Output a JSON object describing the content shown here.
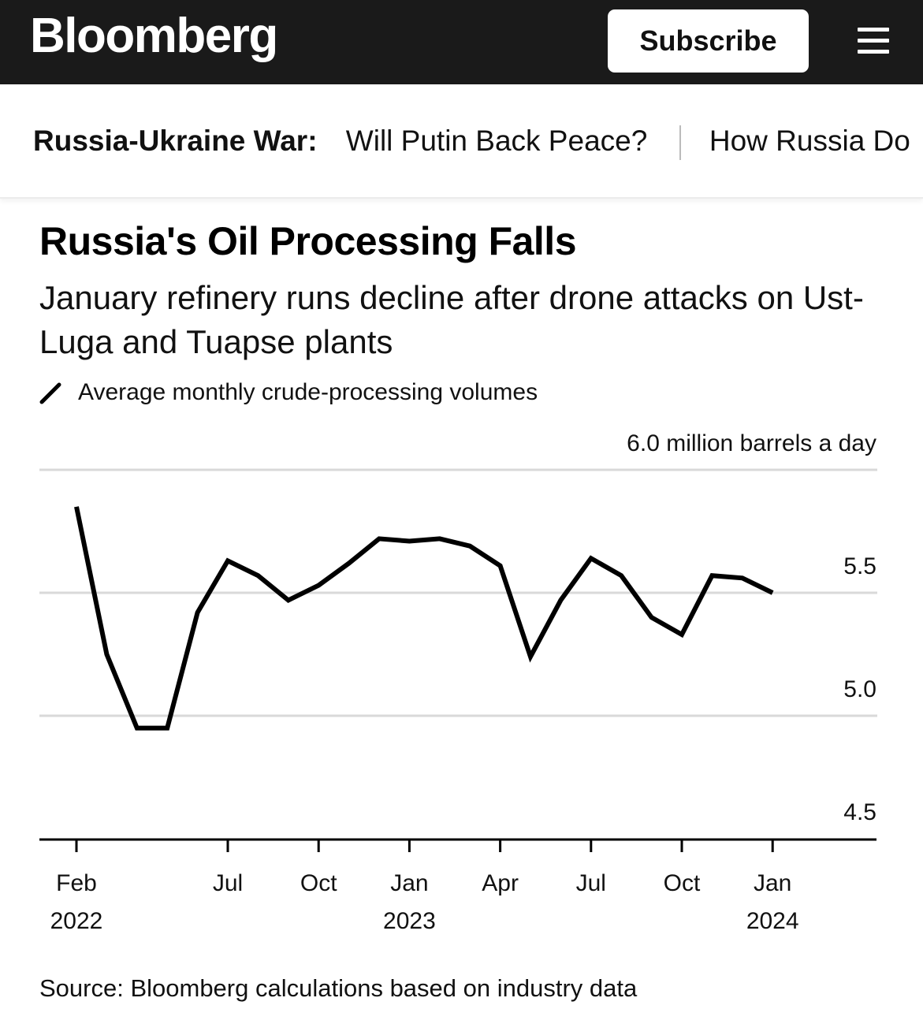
{
  "header": {
    "logo_text": "Bloomberg",
    "subscribe_label": "Subscribe"
  },
  "nav": {
    "label": "Russia-Ukraine War:",
    "links": [
      "Will Putin Back Peace?",
      "How Russia Do"
    ]
  },
  "chart_data": {
    "type": "line",
    "title": "Russia's Oil Processing Falls",
    "subtitle": "January refinery runs decline after drone attacks on Ust-Luga and Tuapse plants",
    "series": [
      {
        "name": "Average monthly crude-processing volumes",
        "x": [
          "2022-02",
          "2022-03",
          "2022-04",
          "2022-05",
          "2022-06",
          "2022-07",
          "2022-08",
          "2022-09",
          "2022-10",
          "2022-11",
          "2022-12",
          "2023-01",
          "2023-02",
          "2023-03",
          "2023-04",
          "2023-05",
          "2023-06",
          "2023-07",
          "2023-08",
          "2023-09",
          "2023-10",
          "2023-11",
          "2023-12",
          "2024-01"
        ],
        "values": [
          5.85,
          5.25,
          4.95,
          4.95,
          5.42,
          5.63,
          5.57,
          5.47,
          5.53,
          5.62,
          5.72,
          5.71,
          5.72,
          5.69,
          5.61,
          5.24,
          5.47,
          5.64,
          5.57,
          5.4,
          5.33,
          5.57,
          5.56,
          5.5
        ],
        "color": "#000000"
      }
    ],
    "y_ticks": [
      "6.0 million barrels a day",
      "5.5",
      "5.0",
      "4.5"
    ],
    "x_ticks": [
      {
        "date": "2022-02",
        "month": "Feb",
        "year": "2022"
      },
      {
        "date": "2022-07",
        "month": "Jul",
        "year": ""
      },
      {
        "date": "2022-10",
        "month": "Oct",
        "year": ""
      },
      {
        "date": "2023-01",
        "month": "Jan",
        "year": "2023"
      },
      {
        "date": "2023-04",
        "month": "Apr",
        "year": ""
      },
      {
        "date": "2023-07",
        "month": "Jul",
        "year": ""
      },
      {
        "date": "2023-10",
        "month": "Oct",
        "year": ""
      },
      {
        "date": "2024-01",
        "month": "Jan",
        "year": "2024"
      }
    ],
    "ylim": [
      4.5,
      6.0
    ],
    "grid": true,
    "legend_position": "top-left"
  },
  "source": "Source: Bloomberg calculations based on industry data"
}
